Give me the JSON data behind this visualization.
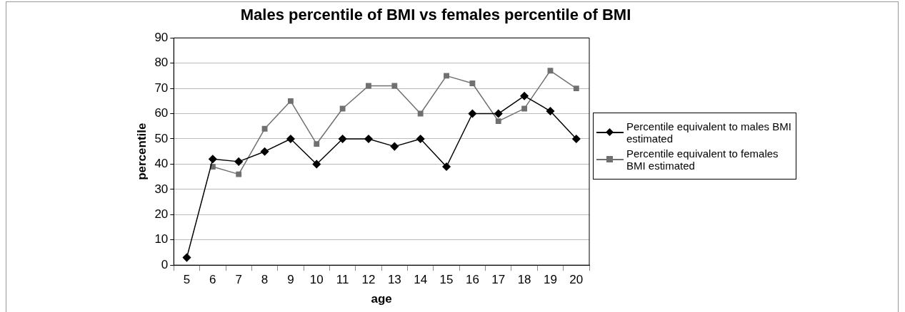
{
  "chart_data": {
    "type": "line",
    "title": "Males percentile of BMI vs females percentile of BMI",
    "xlabel": "age",
    "ylabel": "percentile",
    "categories": [
      "5",
      "6",
      "7",
      "8",
      "9",
      "10",
      "11",
      "12",
      "13",
      "14",
      "15",
      "16",
      "17",
      "18",
      "19",
      "20"
    ],
    "series": [
      {
        "name": "Percentile equivalent to males BMI estimated",
        "color": "#000000",
        "marker": "diamond",
        "values": [
          3,
          42,
          41,
          45,
          50,
          40,
          50,
          50,
          47,
          50,
          39,
          60,
          60,
          67,
          61,
          50
        ]
      },
      {
        "name": "Percentile equivalent to females BMI estimated",
        "color": "#707070",
        "marker": "square",
        "values": [
          null,
          39,
          36,
          54,
          65,
          48,
          62,
          71,
          71,
          60,
          75,
          72,
          57,
          62,
          77,
          70
        ]
      }
    ],
    "ylim": [
      0,
      90
    ],
    "yticks": [
      0,
      10,
      20,
      30,
      40,
      50,
      60,
      70,
      80,
      90
    ],
    "grid": "y",
    "legend": "right",
    "line_style": "solid"
  }
}
